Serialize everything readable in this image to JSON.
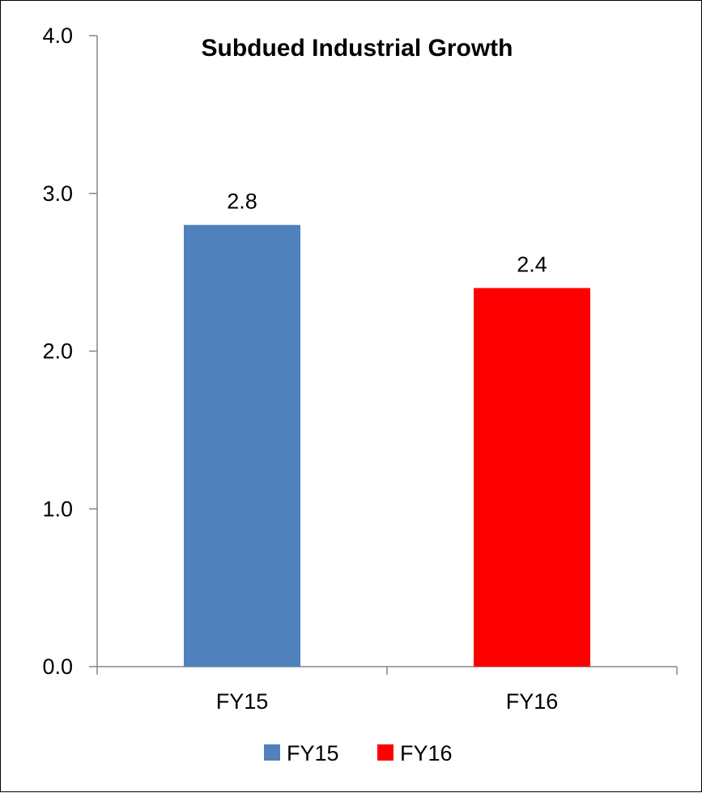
{
  "chart_data": {
    "type": "bar",
    "title": "Subdued Industrial Growth",
    "categories": [
      "FY15",
      "FY16"
    ],
    "values": [
      2.8,
      2.4
    ],
    "data_labels": [
      "2.8",
      "2.4"
    ],
    "colors": [
      "#4F81BD",
      "#FF0000"
    ],
    "ylim": [
      0,
      4.0
    ],
    "yticks": [
      0.0,
      1.0,
      2.0,
      3.0,
      4.0
    ],
    "ytick_labels": [
      "0.0",
      "1.0",
      "2.0",
      "3.0",
      "4.0"
    ],
    "xlabel": "",
    "ylabel": "",
    "grid": false,
    "legend": {
      "placement": "bottom",
      "entries": [
        {
          "label": "FY15",
          "color": "#4F81BD"
        },
        {
          "label": "FY16",
          "color": "#FF0000"
        }
      ]
    }
  }
}
